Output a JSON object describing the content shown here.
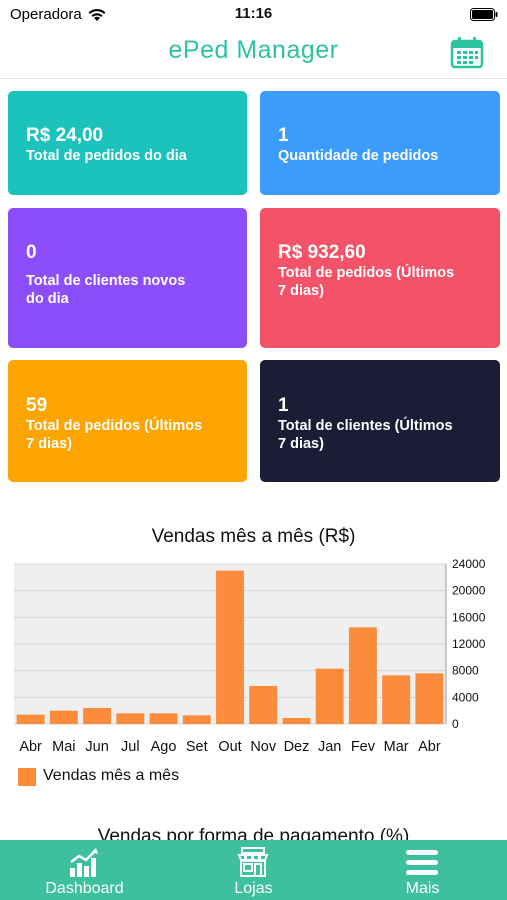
{
  "status_bar": {
    "carrier": "Operadora",
    "time": "11:16"
  },
  "header": {
    "title": "ePed Manager",
    "calendar_icon": "calendar-icon"
  },
  "colors": {
    "accent": "#2cc3a0",
    "tab_bar": "#3ebf9d",
    "bar": "#fb8c3c",
    "card_teal": "#1cc3bd",
    "card_blue": "#3b9cfb",
    "card_purple": "#8c4dfb",
    "card_red": "#f35368",
    "card_orange": "#fba402",
    "card_navy": "#1a1d35"
  },
  "cards": [
    {
      "value": "R$ 24,00",
      "label": "Total de pedidos do dia"
    },
    {
      "value": "1",
      "label": "Quantidade de pedidos"
    },
    {
      "value": "0",
      "label_lines": [
        "Total de clientes novos",
        "do dia"
      ]
    },
    {
      "value": "R$ 932,60",
      "label_lines": [
        "Total de pedidos (Últimos",
        "7 dias)"
      ]
    },
    {
      "value": "59",
      "label_lines": [
        "Total de pedidos (Últimos",
        "7 dias)"
      ]
    },
    {
      "value": "1",
      "label_lines": [
        "Total de clientes (Últimos",
        "7 dias)"
      ]
    }
  ],
  "chart_data": {
    "type": "bar",
    "title": "Vendas mês a mês (R$)",
    "categories": [
      "Abr",
      "Mai",
      "Jun",
      "Jul",
      "Ago",
      "Set",
      "Out",
      "Nov",
      "Dez",
      "Jan",
      "Fev",
      "Mar",
      "Abr"
    ],
    "series": [
      {
        "name": "Vendas mês a mês",
        "values": [
          1400,
          2000,
          2400,
          1600,
          1600,
          1300,
          23000,
          5700,
          900,
          8300,
          14500,
          7300,
          7600
        ]
      }
    ],
    "yticks": [
      0,
      4000,
      8000,
      12000,
      16000,
      20000,
      24000
    ],
    "ylim": [
      0,
      24000
    ],
    "y_axis_side": "right",
    "grid": true,
    "legend": "bottom-left"
  },
  "next_section_title": "Vendas por forma de pagamento (%)",
  "tabs": [
    {
      "label": "Dashboard",
      "icon": "bar-chart-icon"
    },
    {
      "label": "Lojas",
      "icon": "store-icon"
    },
    {
      "label": "Mais",
      "icon": "menu-icon"
    }
  ]
}
